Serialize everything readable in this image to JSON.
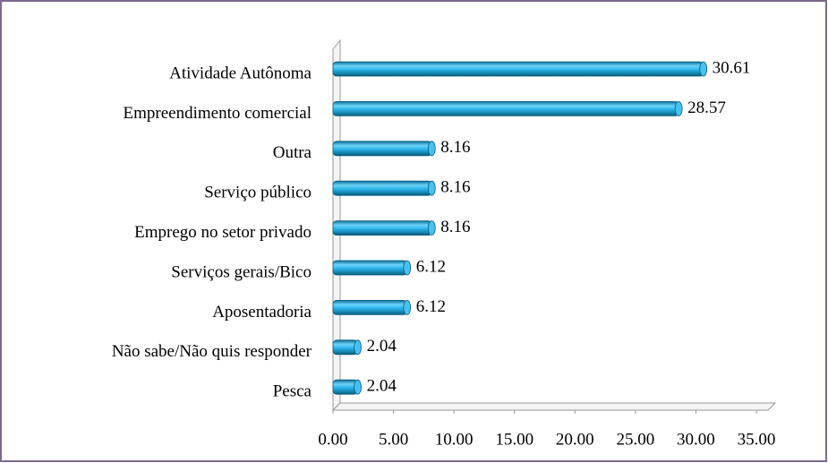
{
  "chart_data": {
    "type": "barh",
    "categories": [
      "Atividade Autônoma",
      "Empreendimento comercial",
      "Outra",
      "Serviço público",
      "Emprego no setor privado",
      "Serviços gerais/Bico",
      "Aposentadoria",
      "Não sabe/Não quis responder",
      "Pesca"
    ],
    "values": [
      30.61,
      28.57,
      8.16,
      8.16,
      8.16,
      6.12,
      6.12,
      2.04,
      2.04
    ],
    "color": "#1fa8e0",
    "xlim": [
      0,
      35
    ],
    "xticks": [
      {
        "value": 0,
        "label": "0.00"
      },
      {
        "value": 5,
        "label": "5.00"
      },
      {
        "value": 10,
        "label": "10.00"
      },
      {
        "value": 15,
        "label": "15.00"
      },
      {
        "value": 20,
        "label": "20.00"
      },
      {
        "value": 25,
        "label": "25.00"
      },
      {
        "value": 30,
        "label": "30.00"
      },
      {
        "value": 35,
        "label": "35.00"
      }
    ]
  }
}
